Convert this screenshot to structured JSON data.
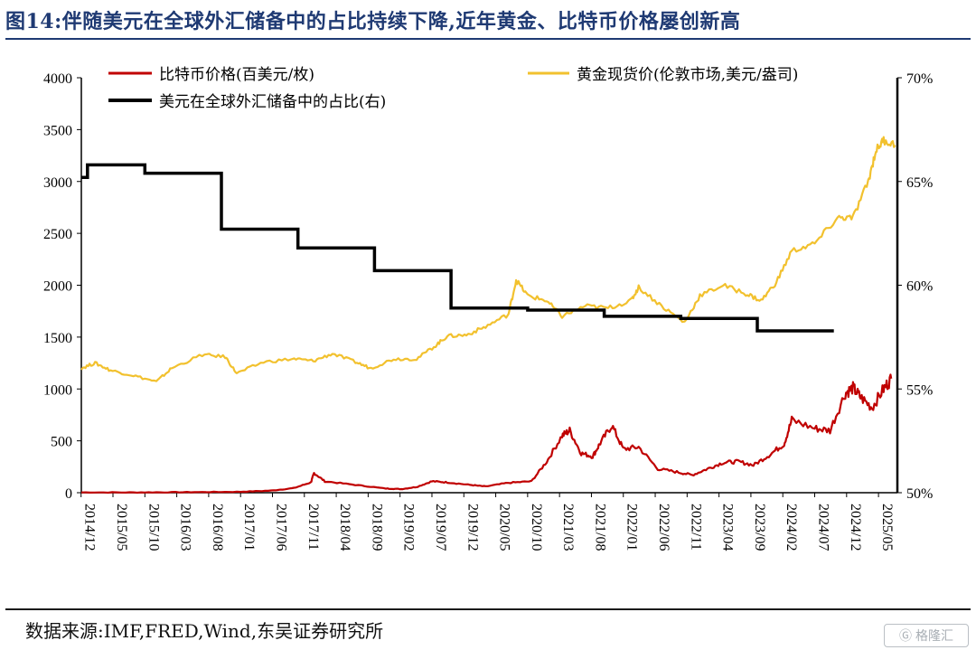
{
  "header": {
    "title": "图14:伴随美元在全球外汇储备中的占比持续下降,近年黄金、比特币价格屡创新高"
  },
  "footer": {
    "source": "数据来源:IMF,FRED,Wind,东吴证券研究所",
    "watermark": "格隆汇"
  },
  "chart_data": {
    "type": "line",
    "x_tick_labels": [
      "2014/12",
      "2015/05",
      "2015/10",
      "2016/03",
      "2016/08",
      "2017/01",
      "2017/06",
      "2017/11",
      "2018/04",
      "2018/09",
      "2019/02",
      "2019/07",
      "2019/12",
      "2020/05",
      "2020/10",
      "2021/03",
      "2021/08",
      "2022/01",
      "2022/06",
      "2022/11",
      "2023/04",
      "2023/09",
      "2024/02",
      "2024/07",
      "2024/12",
      "2025/05"
    ],
    "x_range": [
      2014.92,
      2025.58
    ],
    "y_left": {
      "range": [
        0,
        4000
      ],
      "ticks": [
        "0",
        "500",
        "1000",
        "1500",
        "2000",
        "2500",
        "3000",
        "3500",
        "4000"
      ]
    },
    "y_right": {
      "range": [
        50,
        70
      ],
      "ticks": [
        "50%",
        "55%",
        "60%",
        "65%",
        "70%"
      ]
    },
    "grid": false,
    "legend": {
      "placement": "top"
    },
    "series": [
      {
        "name": "比特币价格(百美元/枚)",
        "axis": "left",
        "color": "#c00000",
        "points": [
          [
            2014.92,
            3
          ],
          [
            2015.5,
            2.5
          ],
          [
            2016.0,
            4
          ],
          [
            2016.5,
            6
          ],
          [
            2017.0,
            9
          ],
          [
            2017.4,
            20
          ],
          [
            2017.7,
            45
          ],
          [
            2017.92,
            100
          ],
          [
            2017.96,
            190
          ],
          [
            2018.1,
            110
          ],
          [
            2018.5,
            75
          ],
          [
            2018.9,
            40
          ],
          [
            2019.1,
            35
          ],
          [
            2019.3,
            55
          ],
          [
            2019.5,
            110
          ],
          [
            2019.7,
            100
          ],
          [
            2020.0,
            75
          ],
          [
            2020.2,
            60
          ],
          [
            2020.5,
            95
          ],
          [
            2020.8,
            110
          ],
          [
            2021.0,
            300
          ],
          [
            2021.2,
            550
          ],
          [
            2021.3,
            600
          ],
          [
            2021.45,
            380
          ],
          [
            2021.6,
            350
          ],
          [
            2021.7,
            480
          ],
          [
            2021.85,
            650
          ],
          [
            2022.0,
            420
          ],
          [
            2022.2,
            440
          ],
          [
            2022.45,
            230
          ],
          [
            2022.7,
            200
          ],
          [
            2022.9,
            170
          ],
          [
            2023.1,
            230
          ],
          [
            2023.3,
            290
          ],
          [
            2023.5,
            300
          ],
          [
            2023.7,
            265
          ],
          [
            2023.9,
            360
          ],
          [
            2024.1,
            470
          ],
          [
            2024.2,
            700
          ],
          [
            2024.5,
            620
          ],
          [
            2024.7,
            600
          ],
          [
            2024.9,
            960
          ],
          [
            2025.0,
            1010
          ],
          [
            2025.1,
            920
          ],
          [
            2025.25,
            820
          ],
          [
            2025.4,
            1000
          ],
          [
            2025.5,
            1100
          ]
        ]
      },
      {
        "name": "黄金现货价(伦敦市场,美元/盎司)",
        "axis": "left",
        "color": "#f2c12e",
        "points": [
          [
            2014.92,
            1200
          ],
          [
            2015.1,
            1250
          ],
          [
            2015.3,
            1180
          ],
          [
            2015.6,
            1130
          ],
          [
            2015.9,
            1070
          ],
          [
            2016.1,
            1200
          ],
          [
            2016.5,
            1330
          ],
          [
            2016.8,
            1310
          ],
          [
            2016.95,
            1150
          ],
          [
            2017.3,
            1260
          ],
          [
            2017.7,
            1290
          ],
          [
            2017.95,
            1270
          ],
          [
            2018.2,
            1340
          ],
          [
            2018.5,
            1260
          ],
          [
            2018.7,
            1200
          ],
          [
            2019.0,
            1290
          ],
          [
            2019.3,
            1290
          ],
          [
            2019.55,
            1420
          ],
          [
            2019.7,
            1510
          ],
          [
            2019.95,
            1520
          ],
          [
            2020.2,
            1600
          ],
          [
            2020.5,
            1720
          ],
          [
            2020.6,
            2050
          ],
          [
            2020.75,
            1900
          ],
          [
            2021.0,
            1850
          ],
          [
            2021.2,
            1700
          ],
          [
            2021.5,
            1800
          ],
          [
            2021.8,
            1780
          ],
          [
            2022.1,
            1850
          ],
          [
            2022.2,
            1980
          ],
          [
            2022.5,
            1800
          ],
          [
            2022.8,
            1640
          ],
          [
            2023.0,
            1900
          ],
          [
            2023.3,
            2000
          ],
          [
            2023.6,
            1920
          ],
          [
            2023.8,
            1850
          ],
          [
            2024.0,
            2030
          ],
          [
            2024.2,
            2330
          ],
          [
            2024.5,
            2400
          ],
          [
            2024.8,
            2650
          ],
          [
            2025.0,
            2650
          ],
          [
            2025.2,
            3000
          ],
          [
            2025.3,
            3300
          ],
          [
            2025.4,
            3400
          ],
          [
            2025.55,
            3350
          ]
        ]
      },
      {
        "name": "美元在全球外汇储备中的占比(右)",
        "axis": "right",
        "color": "#000000",
        "points": [
          [
            2014.92,
            65.2
          ],
          [
            2015.0,
            65.2
          ],
          [
            2015.0,
            65.8
          ],
          [
            2015.75,
            65.8
          ],
          [
            2015.75,
            65.4
          ],
          [
            2016.75,
            65.4
          ],
          [
            2016.75,
            62.7
          ],
          [
            2017.75,
            62.7
          ],
          [
            2017.75,
            61.8
          ],
          [
            2018.75,
            61.8
          ],
          [
            2018.75,
            60.7
          ],
          [
            2019.75,
            60.7
          ],
          [
            2019.75,
            58.9
          ],
          [
            2020.75,
            58.9
          ],
          [
            2020.75,
            58.8
          ],
          [
            2021.75,
            58.8
          ],
          [
            2021.75,
            58.5
          ],
          [
            2022.75,
            58.5
          ],
          [
            2022.75,
            58.4
          ],
          [
            2023.75,
            58.4
          ],
          [
            2023.75,
            57.8
          ],
          [
            2024.75,
            57.8
          ]
        ]
      }
    ]
  }
}
